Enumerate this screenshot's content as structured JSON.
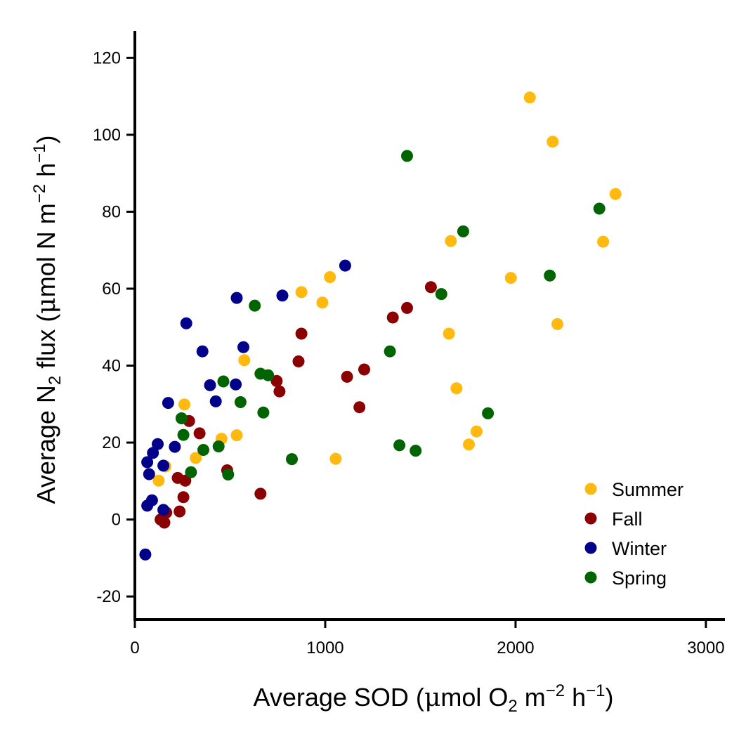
{
  "chart_data": {
    "type": "scatter",
    "xlabel": "Average SOD (μmol O₂ m⁻² h⁻¹)",
    "ylabel": "Average N₂ flux (μmol N m⁻² h⁻¹)",
    "xlabel_parts": {
      "pre": "Average SOD (",
      "mu": "μ",
      "mol": "mol O",
      "sub": "2",
      "m": " m",
      "exp": "−2",
      "h": " h",
      "exp2": "−1",
      "close": ")"
    },
    "ylabel_parts": {
      "pre": "Average N",
      "sub": "2",
      "flux": " flux (",
      "mu": "μ",
      "mol": "mol N m",
      "exp": "−2",
      "h": " h",
      "exp2": "−1",
      "close": ")"
    },
    "xlim": [
      0,
      3100
    ],
    "ylim": [
      -26,
      127
    ],
    "x_ticks": [
      0,
      1000,
      2000,
      3000
    ],
    "x_tick_labels": [
      "0",
      "1000",
      "2000",
      "3000"
    ],
    "y_ticks": [
      -20,
      0,
      20,
      40,
      60,
      80,
      100,
      120
    ],
    "y_tick_labels": [
      "-20",
      "0",
      "20",
      "40",
      "60",
      "80",
      "100",
      "120"
    ],
    "grid": false,
    "legend_position": "bottom-right",
    "series": [
      {
        "name": "Summer",
        "color": "#FFB90F",
        "points": [
          [
            2075,
            109.7
          ],
          [
            2195,
            98.2
          ],
          [
            2525,
            84.6
          ],
          [
            2460,
            72.2
          ],
          [
            1660,
            72.4
          ],
          [
            1975,
            62.8
          ],
          [
            2220,
            50.8
          ],
          [
            1650,
            48.3
          ],
          [
            1690,
            34.1
          ],
          [
            1795,
            22.9
          ],
          [
            1755,
            19.5
          ],
          [
            1055,
            15.8
          ],
          [
            1025,
            63.0
          ],
          [
            875,
            59.1
          ],
          [
            985,
            56.4
          ],
          [
            575,
            41.4
          ],
          [
            535,
            21.9
          ],
          [
            455,
            21.0
          ],
          [
            260,
            29.9
          ],
          [
            320,
            16.0
          ],
          [
            160,
            13.8
          ],
          [
            125,
            10.1
          ]
        ]
      },
      {
        "name": "Fall",
        "color": "#8B0000",
        "points": [
          [
            1555,
            60.4
          ],
          [
            1430,
            55.0
          ],
          [
            1355,
            52.5
          ],
          [
            875,
            48.3
          ],
          [
            860,
            41.1
          ],
          [
            1205,
            39.0
          ],
          [
            1115,
            37.1
          ],
          [
            745,
            36.0
          ],
          [
            760,
            33.3
          ],
          [
            1180,
            29.2
          ],
          [
            285,
            25.6
          ],
          [
            340,
            22.4
          ],
          [
            225,
            10.8
          ],
          [
            265,
            10.1
          ],
          [
            485,
            12.8
          ],
          [
            255,
            5.8
          ],
          [
            660,
            6.7
          ],
          [
            235,
            2.1
          ],
          [
            165,
            1.8
          ],
          [
            135,
            0.0
          ],
          [
            155,
            -0.8
          ]
        ]
      },
      {
        "name": "Winter",
        "color": "#00008B",
        "points": [
          [
            1105,
            66.0
          ],
          [
            535,
            57.6
          ],
          [
            775,
            58.2
          ],
          [
            270,
            51.0
          ],
          [
            355,
            43.7
          ],
          [
            570,
            44.8
          ],
          [
            395,
            34.9
          ],
          [
            530,
            35.1
          ],
          [
            425,
            30.7
          ],
          [
            175,
            30.3
          ],
          [
            210,
            18.9
          ],
          [
            120,
            19.6
          ],
          [
            95,
            17.3
          ],
          [
            65,
            14.9
          ],
          [
            75,
            11.8
          ],
          [
            150,
            14.0
          ],
          [
            90,
            5.0
          ],
          [
            65,
            3.6
          ],
          [
            150,
            2.5
          ],
          [
            55,
            -9.1
          ]
        ]
      },
      {
        "name": "Spring",
        "color": "#006400",
        "points": [
          [
            1430,
            94.5
          ],
          [
            2440,
            80.8
          ],
          [
            1725,
            74.9
          ],
          [
            2180,
            63.4
          ],
          [
            1610,
            58.6
          ],
          [
            630,
            55.6
          ],
          [
            1340,
            43.7
          ],
          [
            465,
            35.9
          ],
          [
            660,
            37.9
          ],
          [
            700,
            37.5
          ],
          [
            555,
            30.5
          ],
          [
            675,
            27.8
          ],
          [
            1855,
            27.6
          ],
          [
            245,
            26.3
          ],
          [
            255,
            22.0
          ],
          [
            1390,
            19.3
          ],
          [
            1475,
            17.9
          ],
          [
            440,
            19.0
          ],
          [
            360,
            18.1
          ],
          [
            825,
            15.7
          ],
          [
            295,
            12.3
          ],
          [
            490,
            11.7
          ]
        ]
      }
    ]
  }
}
